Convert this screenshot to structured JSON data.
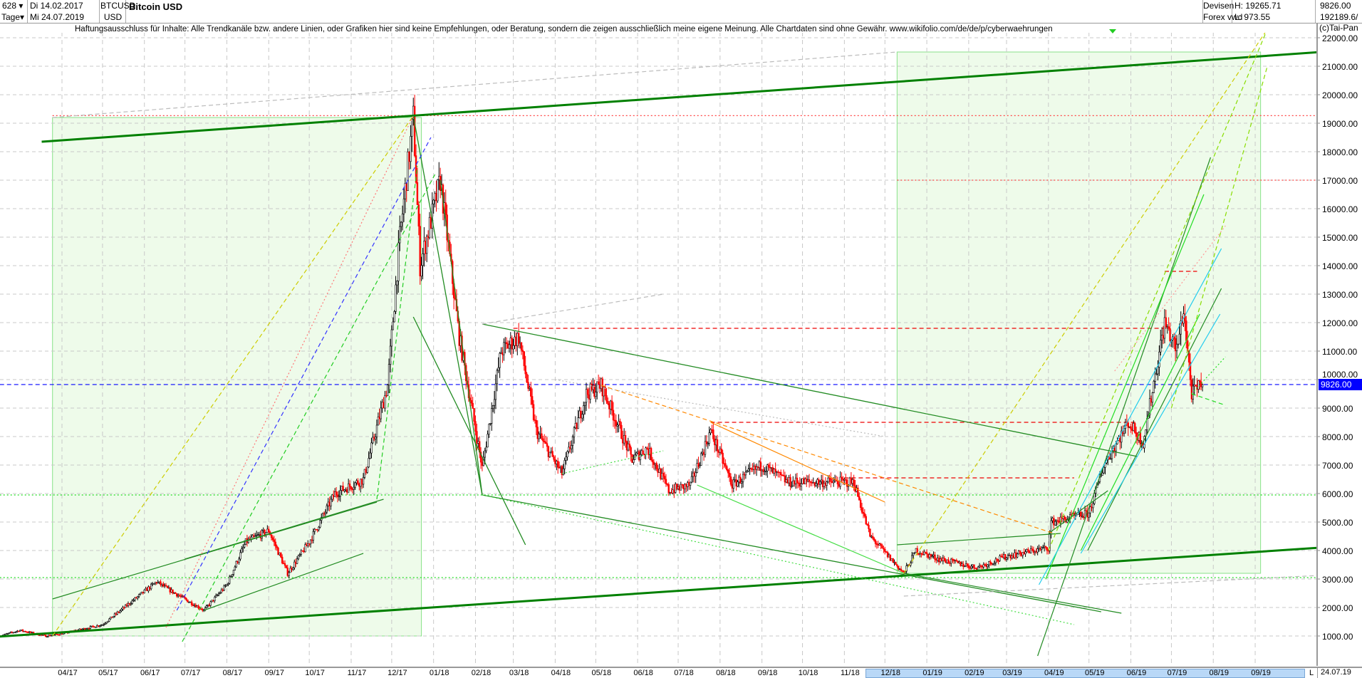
{
  "header": {
    "count": "628",
    "period": "Tage",
    "date_from": "Di 14.02.2017",
    "date_to": "Mi 24.07.2019",
    "symbol": "BTCUSD",
    "currency": "USD",
    "title": "Bitcoin USD",
    "market": "Devisen",
    "source": "Forex vwd",
    "high": "H: 19265.71",
    "low": "L: 973.55",
    "last": "9826.00",
    "volume": "192189.6/"
  },
  "disclaimer": "Haftungsausschluss für Inhalte: Alle Trendkanäle bzw. andere Linien, oder Grafiken hier sind keine Empfehlungen, oder Beratung, sondern die zeigen ausschließlich meine eigene Meinung. Alle Chartdaten sind ohne Gewähr.  www.wikifolio.com/de/de/p/cyberwaehrungen",
  "copyright": "(c)Tai-Pan",
  "current_price_label": "9826.00",
  "end_date_label": "24.07.19",
  "scroll_marker": "L",
  "colors": {
    "up": "#ffffff",
    "down": "#ff0000",
    "current": "#0000ff",
    "rect_fill": "#eefbea",
    "rect_border": "#88e288"
  },
  "chart_data": {
    "type": "candlestick",
    "ylim": [
      0,
      22000
    ],
    "y_ticks": [
      1000,
      2000,
      3000,
      4000,
      5000,
      6000,
      7000,
      8000,
      9000,
      10000,
      11000,
      12000,
      13000,
      14000,
      15000,
      16000,
      17000,
      18000,
      19000,
      20000,
      21000,
      22000
    ],
    "y_tick_labels": [
      "1000.00",
      "2000.00",
      "3000.00",
      "4000.00",
      "5000.00",
      "6000.00",
      "7000.00",
      "8000.00",
      "9000.00",
      "10000.00",
      "11000.00",
      "12000.00",
      "13000.00",
      "14000.00",
      "15000.00",
      "16000.00",
      "17000.00",
      "18000.00",
      "19000.00",
      "20000.00",
      "21000.00",
      "22000.00"
    ],
    "x_ticks": [
      "04/17",
      "05/17",
      "06/17",
      "07/17",
      "08/17",
      "09/17",
      "10/17",
      "11/17",
      "12/17",
      "01/18",
      "02/18",
      "03/18",
      "04/18",
      "05/18",
      "06/18",
      "07/18",
      "08/18",
      "09/18",
      "10/18",
      "11/18",
      "12/18",
      "01/19",
      "02/19",
      "03/19",
      "04/19",
      "05/19",
      "06/19",
      "07/19",
      "08/19",
      "09/19"
    ],
    "x_range": [
      "2017-02-14",
      "2019-11-19"
    ],
    "price_path": [
      [
        "2017-02-14",
        1000
      ],
      [
        "2017-03-01",
        1200
      ],
      [
        "2017-03-20",
        1000
      ],
      [
        "2017-04-01",
        1080
      ],
      [
        "2017-05-01",
        1400
      ],
      [
        "2017-05-25",
        2300
      ],
      [
        "2017-06-10",
        2900
      ],
      [
        "2017-06-20",
        2600
      ],
      [
        "2017-07-15",
        1900
      ],
      [
        "2017-08-01",
        2800
      ],
      [
        "2017-08-15",
        4300
      ],
      [
        "2017-09-01",
        4700
      ],
      [
        "2017-09-15",
        3200
      ],
      [
        "2017-10-01",
        4300
      ],
      [
        "2017-10-20",
        6000
      ],
      [
        "2017-11-10",
        6500
      ],
      [
        "2017-11-28",
        9800
      ],
      [
        "2017-12-07",
        15000
      ],
      [
        "2017-12-17",
        19200
      ],
      [
        "2017-12-22",
        14000
      ],
      [
        "2018-01-06",
        17000
      ],
      [
        "2018-01-20",
        11500
      ],
      [
        "2018-02-06",
        6900
      ],
      [
        "2018-02-20",
        11000
      ],
      [
        "2018-03-05",
        11500
      ],
      [
        "2018-03-18",
        8200
      ],
      [
        "2018-04-06",
        6700
      ],
      [
        "2018-04-24",
        9500
      ],
      [
        "2018-05-05",
        9800
      ],
      [
        "2018-05-28",
        7200
      ],
      [
        "2018-06-08",
        7600
      ],
      [
        "2018-06-24",
        6100
      ],
      [
        "2018-07-10",
        6300
      ],
      [
        "2018-07-25",
        8200
      ],
      [
        "2018-08-10",
        6300
      ],
      [
        "2018-09-01",
        7000
      ],
      [
        "2018-09-20",
        6400
      ],
      [
        "2018-10-15",
        6400
      ],
      [
        "2018-11-08",
        6400
      ],
      [
        "2018-11-20",
        4500
      ],
      [
        "2018-12-15",
        3200
      ],
      [
        "2018-12-24",
        4000
      ],
      [
        "2019-01-10",
        3700
      ],
      [
        "2019-02-07",
        3400
      ],
      [
        "2019-03-01",
        3800
      ],
      [
        "2019-04-01",
        4100
      ],
      [
        "2019-04-03",
        5000
      ],
      [
        "2019-05-01",
        5300
      ],
      [
        "2019-05-12",
        7000
      ],
      [
        "2019-05-30",
        8500
      ],
      [
        "2019-06-10",
        7800
      ],
      [
        "2019-06-26",
        12000
      ],
      [
        "2019-07-05",
        11000
      ],
      [
        "2019-07-10",
        12500
      ],
      [
        "2019-07-16",
        9500
      ],
      [
        "2019-07-24",
        9826
      ]
    ],
    "horizontal_lines": [
      {
        "price": 19265,
        "from": "2017-03-25",
        "to": "2019-11-19",
        "color": "#ff4444",
        "style": "dotted"
      },
      {
        "price": 17000,
        "from": "2018-12-10",
        "to": "2019-11-19",
        "color": "#ff4444",
        "style": "dotted"
      },
      {
        "price": 11800,
        "from": "2018-03-01",
        "to": "2019-06-26",
        "color": "#ee0000",
        "style": "dashed"
      },
      {
        "price": 8500,
        "from": "2018-07-25",
        "to": "2019-06-05",
        "color": "#ee0000",
        "style": "dashed"
      },
      {
        "price": 6550,
        "from": "2018-11-01",
        "to": "2019-04-20",
        "color": "#ee0000",
        "style": "dashed"
      },
      {
        "price": 13800,
        "from": "2019-06-26",
        "to": "2019-07-20",
        "color": "#ee0000",
        "style": "dashed"
      },
      {
        "price": 5950,
        "from": "2017-02-14",
        "to": "2019-11-19",
        "color": "#22dd22",
        "style": "dotted"
      },
      {
        "price": 3050,
        "from": "2017-02-14",
        "to": "2019-11-19",
        "color": "#22dd22",
        "style": "dotted"
      },
      {
        "price": 9826,
        "from": "2017-02-14",
        "to": "2019-11-19",
        "color": "#0000ff",
        "style": "dashed"
      }
    ],
    "zones": [
      {
        "from": "2017-03-25",
        "to": "2017-12-23",
        "low": 1000,
        "high": 19200
      },
      {
        "from": "2018-12-10",
        "to": "2019-09-05",
        "low": 3200,
        "high": 21500
      }
    ],
    "trendlines": [
      [
        "2017-03-17",
        18350,
        "2019-11-19",
        21600,
        "#008000",
        "solid",
        3
      ],
      [
        "2017-02-14",
        980,
        "2019-11-19",
        4200,
        "#008000",
        "solid",
        3
      ],
      [
        "2017-12-17",
        19265,
        "2018-02-06",
        5950,
        "#228b22",
        "solid",
        1.3
      ],
      [
        "2017-12-17",
        12200,
        "2018-03-10",
        4200,
        "#228b22",
        "solid",
        1.3
      ],
      [
        "2018-01-06",
        17000,
        "2018-02-06",
        5950,
        "#228b22",
        "solid",
        1.3
      ],
      [
        "2018-02-06",
        11950,
        "2019-06-06",
        7300,
        "#228b22",
        "solid",
        1.3
      ],
      [
        "2018-02-06",
        5950,
        "2019-05-10",
        1850,
        "#228b22",
        "solid",
        1.3
      ],
      [
        "2017-03-25",
        2300,
        "2017-11-20",
        5700,
        "#228b22",
        "solid",
        1.2
      ],
      [
        "2017-07-01",
        3700,
        "2017-11-25",
        5800,
        "#228b22",
        "solid",
        1.2
      ],
      [
        "2017-07-15",
        1900,
        "2017-11-10",
        3900,
        "#228b22",
        "solid",
        1.2
      ],
      [
        "2018-12-10",
        4200,
        "2019-04-10",
        4600,
        "#228b22",
        "solid",
        1.2
      ],
      [
        "2018-12-15",
        3200,
        "2019-05-25",
        1800,
        "#228b22",
        "solid",
        1.2
      ],
      [
        "2019-03-24",
        300,
        "2019-07-30",
        17800,
        "#228b22",
        "solid",
        1.2
      ],
      [
        "2019-04-30",
        4000,
        "2019-08-07",
        13200,
        "#228b22",
        "solid",
        1.2
      ],
      [
        "2019-04-01",
        4600,
        "2019-05-15",
        6100,
        "#228b22",
        "solid",
        1.2
      ],
      [
        "2019-03-30",
        3000,
        "2019-07-25",
        16500,
        "#22dd22",
        "solid",
        1.2
      ],
      [
        "2019-04-25",
        4000,
        "2019-07-22",
        12300,
        "#22dd22",
        "solid",
        1.2
      ],
      [
        "2018-07-15",
        6300,
        "2018-12-15",
        3200,
        "#44dd44",
        "solid",
        1.2
      ],
      [
        "2019-03-25",
        2800,
        "2019-08-07",
        14600,
        "#22ccee",
        "solid",
        1.2
      ],
      [
        "2019-04-25",
        3900,
        "2019-08-06",
        12300,
        "#22ccee",
        "solid",
        1.2
      ],
      [
        "2017-03-25",
        1000,
        "2017-12-17",
        19265,
        "#cccc00",
        "dashed",
        1.2
      ],
      [
        "2018-12-15",
        3200,
        "2019-09-10",
        22300,
        "#cccc00",
        "dashed",
        1.2
      ],
      [
        "2019-04-01",
        4000,
        "2019-09-10",
        22300,
        "#88dd00",
        "dashed",
        1.2
      ],
      [
        "2019-07-01",
        9000,
        "2019-09-10",
        21000,
        "#88dd00",
        "dashed",
        1.2
      ],
      [
        "2017-06-29",
        800,
        "2018-01-02",
        17200,
        "#22cc22",
        "dashed",
        1.2
      ],
      [
        "2017-11-20",
        5800,
        "2017-12-20",
        17500,
        "#22cc22",
        "dashed",
        1.2
      ],
      [
        "2018-02-06",
        5950,
        "2019-04-20",
        1400,
        "#44dd44",
        "dotted",
        1.2
      ],
      [
        "2018-04-06",
        6700,
        "2018-06-20",
        7500,
        "#44dd44",
        "dotted",
        1.2
      ],
      [
        "2017-06-17",
        1300,
        "2017-12-17",
        19265,
        "#ff7777",
        "dotted",
        1.2
      ],
      [
        "2017-06-25",
        1900,
        "2017-12-30",
        18500,
        "#3333ff",
        "dashed",
        1.2
      ],
      [
        "2018-05-05",
        9800,
        "2019-04-05",
        4600,
        "#ff8800",
        "dashed",
        1.2
      ],
      [
        "2018-07-25",
        8500,
        "2018-12-01",
        5700,
        "#ff8800",
        "solid",
        1.2
      ],
      [
        "2019-05-20",
        10300,
        "2019-08-10",
        15400,
        "#ff9999",
        "dotted",
        1.2
      ],
      [
        "2017-03-25",
        19200,
        "2018-12-10",
        21500,
        "#bbbbbb",
        "dashed",
        1.2
      ],
      [
        "2018-02-06",
        11950,
        "2018-06-20",
        13000,
        "#bbbbbb",
        "dashed",
        1.2
      ],
      [
        "2018-04-01",
        10000,
        "2018-12-01",
        8000,
        "#bbbbbb",
        "dotted",
        1.2
      ],
      [
        "2018-12-15",
        2400,
        "2019-11-19",
        3200,
        "#bbbbbb",
        "dashed",
        1.2
      ],
      [
        "2019-07-16",
        9500,
        "2019-08-10",
        9100,
        "#22dd22",
        "dashed",
        1.2
      ],
      [
        "2019-07-16",
        9500,
        "2019-08-10",
        10800,
        "#22dd22",
        "dotted",
        1.2
      ]
    ]
  }
}
